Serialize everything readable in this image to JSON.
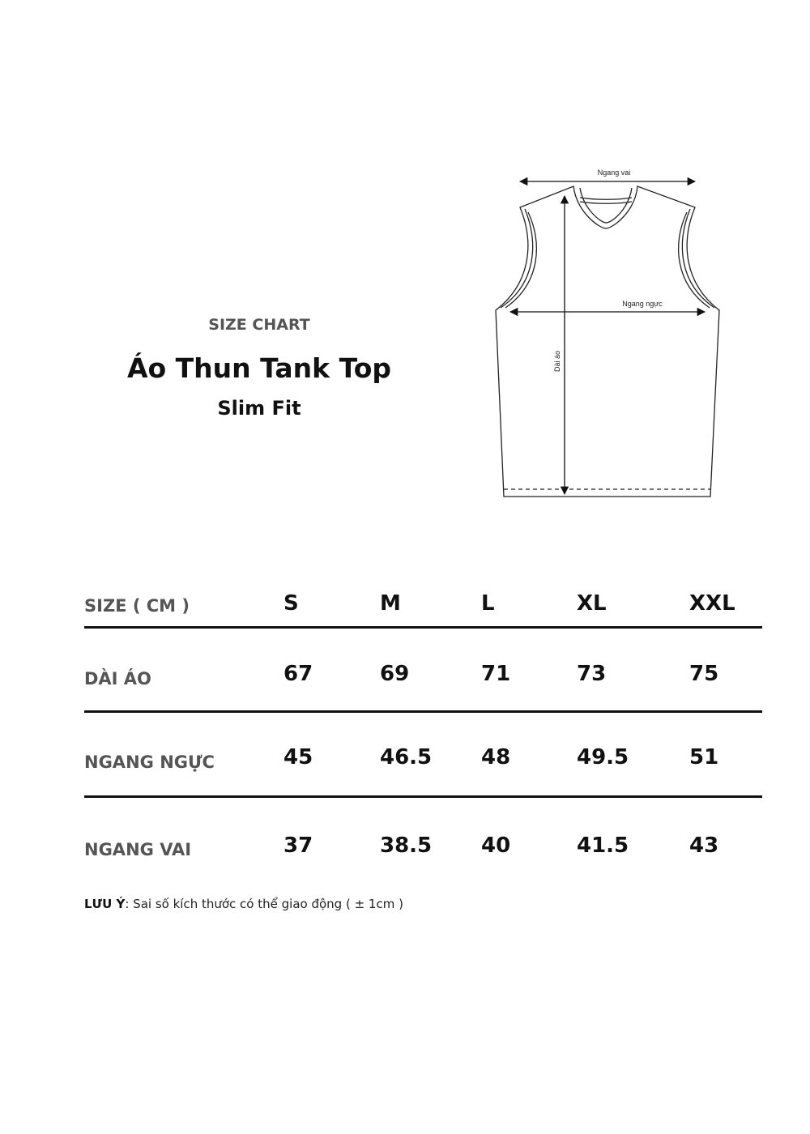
{
  "header": {
    "kicker": "SIZE CHART",
    "title": "Áo Thun Tank Top",
    "subtitle": "Slim Fit"
  },
  "diagram": {
    "labels": {
      "shoulder": "Ngang vai",
      "chest": "Ngang ngực",
      "length": "Dài áo"
    }
  },
  "table": {
    "header_label": "SIZE ( CM )",
    "sizes": [
      "S",
      "M",
      "L",
      "XL",
      "XXL"
    ],
    "rows": [
      {
        "label": "DÀI ÁO",
        "values": [
          "67",
          "69",
          "71",
          "73",
          "75"
        ]
      },
      {
        "label": "NGANG NGỰC",
        "values": [
          "45",
          "46.5",
          "48",
          "49.5",
          "51"
        ]
      },
      {
        "label": "NGANG VAI",
        "values": [
          "37",
          "38.5",
          "40",
          "41.5",
          "43"
        ]
      }
    ]
  },
  "note": {
    "label": "LƯU Ý",
    "text": ": Sai số kích thước có thể giao động ( ± 1cm )"
  }
}
